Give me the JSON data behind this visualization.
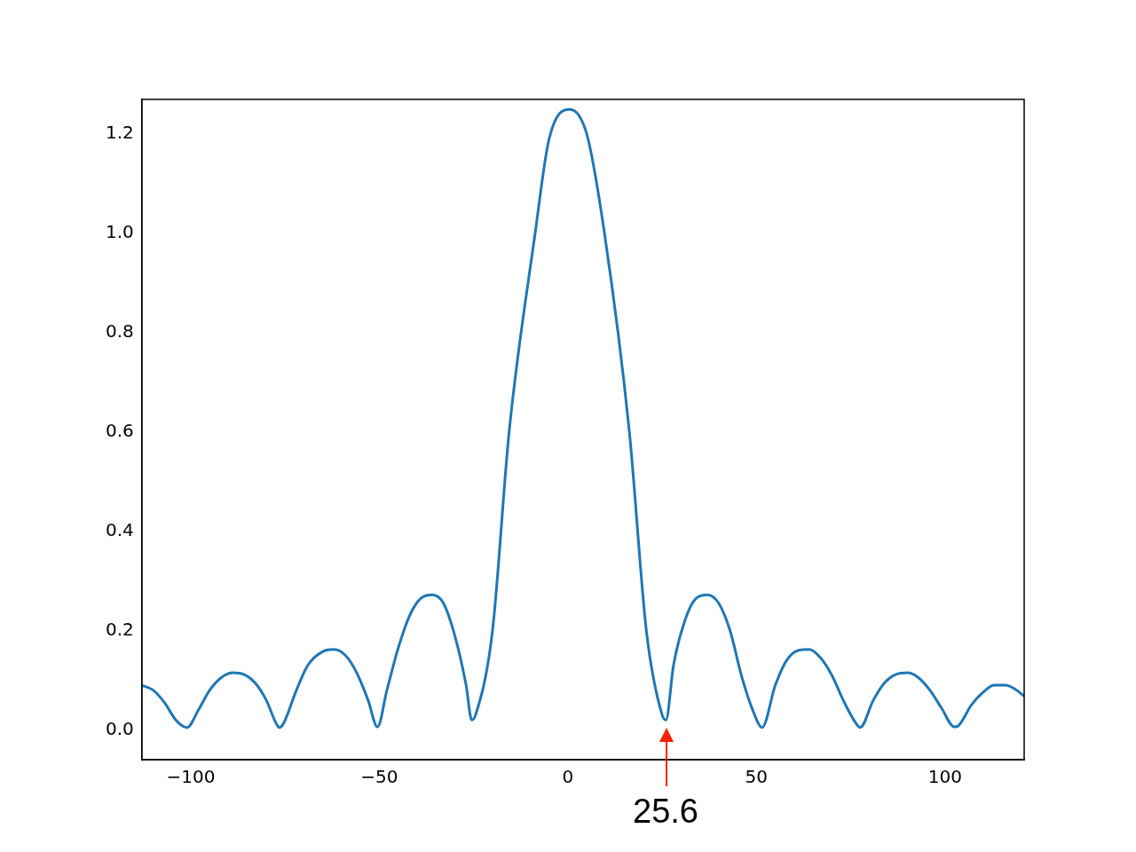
{
  "chart_data": {
    "type": "line",
    "x": [
      -113,
      -110,
      -107,
      -104,
      -102,
      -101,
      -98,
      -95,
      -92,
      -89,
      -86,
      -83,
      -80,
      -77.5,
      -76.5,
      -75.5,
      -72,
      -69,
      -65,
      -62,
      -59,
      -56,
      -53,
      -50.5,
      -48,
      -45,
      -42,
      -39,
      -36,
      -33,
      -30,
      -27,
      -25.5,
      -24.5,
      -20,
      -15.6,
      -8.7,
      -5,
      0.5,
      5,
      9.7,
      16.3,
      20.8,
      25,
      26,
      28,
      31,
      34,
      37,
      40,
      43,
      46,
      49,
      51.5,
      55,
      58,
      61,
      64,
      67,
      70,
      73,
      76.5,
      77.5,
      81,
      84,
      87,
      90,
      93,
      96,
      99,
      102.5,
      103.5,
      107,
      110,
      113,
      116,
      119,
      121
    ],
    "series": [
      {
        "color": "#1f77b4",
        "values": [
          0.09,
          0.08,
          0.055,
          0.02,
          0.007,
          0.005,
          0.04,
          0.08,
          0.105,
          0.115,
          0.112,
          0.095,
          0.06,
          0.015,
          0.005,
          0.012,
          0.08,
          0.13,
          0.158,
          0.162,
          0.15,
          0.115,
          0.06,
          0.006,
          0.08,
          0.165,
          0.23,
          0.265,
          0.272,
          0.255,
          0.19,
          0.09,
          0.02,
          0.03,
          0.2,
          0.6,
          1.0,
          1.19,
          1.25,
          1.2,
          1.0,
          0.6,
          0.2,
          0.03,
          0.02,
          0.13,
          0.22,
          0.265,
          0.272,
          0.255,
          0.2,
          0.11,
          0.04,
          0.005,
          0.09,
          0.14,
          0.16,
          0.162,
          0.145,
          0.11,
          0.06,
          0.012,
          0.005,
          0.06,
          0.095,
          0.112,
          0.115,
          0.105,
          0.08,
          0.045,
          0.006,
          0.008,
          0.05,
          0.075,
          0.09,
          0.09,
          0.08,
          0.068
        ]
      }
    ],
    "xlim": [
      -113,
      121
    ],
    "xticks": [
      {
        "value": -100,
        "label": "−100"
      },
      {
        "value": -50,
        "label": "−50"
      },
      0,
      50,
      100
    ],
    "ylim": [
      -0.06,
      1.27
    ],
    "yticks": [
      {
        "value": 0,
        "label": "0.0"
      },
      0.2,
      0.4,
      0.6,
      0.8,
      {
        "value": 1,
        "label": "1.0"
      },
      1.2
    ],
    "annotations": [
      "25.6"
    ],
    "grid": false,
    "legend": false,
    "marker": "none",
    "line_style": "solid"
  }
}
